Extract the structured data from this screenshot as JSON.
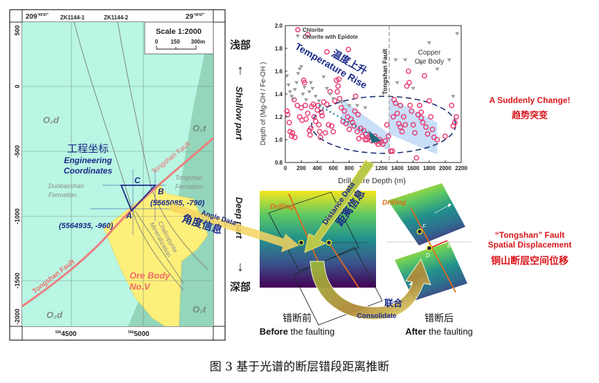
{
  "caption": "图 3  基于光谱的断层错段距离推断",
  "map": {
    "top_labels": {
      "left_coord": "209",
      "left_coord_sup": "°49'87\"",
      "right_coord": "29",
      "right_coord_sup": "°49'87\"",
      "drillholes": [
        "ZK1144-1",
        "ZK1144-2"
      ]
    },
    "y_ticks": [
      "500",
      "0",
      "-500",
      "-1000",
      "-1500",
      "-2000"
    ],
    "x_ticks": [
      {
        "prefix": "556",
        "value": "4500"
      },
      {
        "prefix": "556",
        "value": "5000"
      }
    ],
    "scale": {
      "title": "Scale 1:2000",
      "ticks": [
        "0",
        "150",
        "300m"
      ]
    },
    "formations": {
      "o2d_top": "O₂d",
      "o2d_bottom": "O₂d",
      "o2t_top": "O₂t",
      "o2t_bottom": "O₂t",
      "duobaoshan": [
        "Duobaoshan",
        "Formation"
      ],
      "tongshan": [
        "Tongshan",
        "Formation"
      ]
    },
    "fault_label_upper": "Tongshan Fault",
    "fault_label_lower": "Tongshan Fault",
    "engineering_cn": "工程坐标",
    "engineering_en": [
      "Engineering",
      "Coordinates"
    ],
    "points": {
      "A": "A",
      "B": "B",
      "C": "C",
      "A_coord": "(5564935, -960)",
      "B_coord": "(5565085, -790)"
    },
    "chalcopyrite": [
      "Chalcopyrite",
      "Mineralization"
    ],
    "ore_body": [
      "Ore Body",
      "No.V"
    ],
    "angle_data_en": "Angle Data",
    "angle_data_cn": "角度信息"
  },
  "depth_axis": {
    "shallow_cn": "浅部",
    "shallow_en": "Shallow part",
    "deep_en": "Deep part",
    "deep_cn": "深部",
    "up_arrow": "↑",
    "down_arrow": "↓"
  },
  "chart_data": {
    "type": "scatter",
    "title": "",
    "xlabel": "Drill Core Depth (m)",
    "ylabel": "Depth of (Mg-OH / Fe-OH )",
    "xlim": [
      0,
      2200
    ],
    "ylim": [
      0.8,
      2.0
    ],
    "x_ticks": [
      "0",
      "200",
      "400",
      "600",
      "800",
      "1000",
      "1200",
      "1400",
      "1600",
      "1800",
      "2000",
      "2200"
    ],
    "y_ticks": [
      "0.8",
      "1.0",
      "1.2",
      "1.4",
      "1.6",
      "1.8",
      "2.0"
    ],
    "legend": [
      "Chlorite",
      "Chlorite with Epidote"
    ],
    "legend_position": "top-left",
    "annotations": {
      "temperature_cn": "温度上升",
      "temperature_en": "Temperature Rise",
      "fault": "Tongshan Fault",
      "fault_x": 1300,
      "ore_body": [
        "Copper",
        "Ore Body"
      ]
    },
    "series": [
      {
        "name": "Chlorite",
        "color": "#e8336b",
        "points": [
          [
            20,
            1.25
          ],
          [
            30,
            1.22
          ],
          [
            50,
            1.15
          ],
          [
            60,
            1.07
          ],
          [
            80,
            1.03
          ],
          [
            90,
            1.06
          ],
          [
            110,
            1.35
          ],
          [
            120,
            1.02
          ],
          [
            150,
            1.3
          ],
          [
            180,
            1.2
          ],
          [
            200,
            1.28
          ],
          [
            210,
            1.17
          ],
          [
            230,
            1.52
          ],
          [
            240,
            1.5
          ],
          [
            250,
            1.3
          ],
          [
            260,
            1.18
          ],
          [
            280,
            1.23
          ],
          [
            300,
            1.08
          ],
          [
            310,
            1.04
          ],
          [
            320,
            1.1
          ],
          [
            330,
            1.29
          ],
          [
            350,
            1.31
          ],
          [
            360,
            1.2
          ],
          [
            380,
            1.16
          ],
          [
            400,
            1.26
          ],
          [
            410,
            1.3
          ],
          [
            420,
            1.13
          ],
          [
            430,
            1.07
          ],
          [
            440,
            1.02
          ],
          [
            450,
            1.24
          ],
          [
            460,
            1.21
          ],
          [
            480,
            1.33
          ],
          [
            500,
            1.06
          ],
          [
            520,
            1.31
          ],
          [
            540,
            1.13
          ],
          [
            560,
            1.42
          ],
          [
            580,
            1.12
          ],
          [
            600,
            1.07
          ],
          [
            620,
            1.34
          ],
          [
            640,
            1.52
          ],
          [
            650,
            1.42
          ],
          [
            660,
            1.47
          ],
          [
            670,
            1.53
          ],
          [
            680,
            1.36
          ],
          [
            700,
            1.28
          ],
          [
            720,
            1.16
          ],
          [
            740,
            1.25
          ],
          [
            760,
            1.14
          ],
          [
            780,
            1.2
          ],
          [
            790,
            1.79
          ],
          [
            800,
            1.09
          ],
          [
            820,
            1.18
          ],
          [
            840,
            1.15
          ],
          [
            860,
            1.12
          ],
          [
            870,
            1.25
          ],
          [
            880,
            1.38
          ],
          [
            900,
            1.07
          ],
          [
            910,
            1.22
          ],
          [
            920,
            1.01
          ],
          [
            940,
            1.1
          ],
          [
            960,
            1.03
          ],
          [
            980,
            1.08
          ],
          [
            1000,
            1.0
          ],
          [
            1010,
            1.05
          ],
          [
            1020,
            1.0
          ],
          [
            1040,
            1.02
          ],
          [
            1060,
            1.04
          ],
          [
            1080,
            0.99
          ],
          [
            1100,
            1.01
          ],
          [
            1120,
            1.03
          ],
          [
            1140,
            0.98
          ],
          [
            1160,
            0.96
          ],
          [
            1180,
            1.0
          ],
          [
            1200,
            0.98
          ],
          [
            1220,
            0.96
          ],
          [
            1250,
            0.99
          ],
          [
            1270,
            1.13
          ],
          [
            1290,
            1.03
          ],
          [
            1320,
            0.9
          ],
          [
            1340,
            0.9
          ],
          [
            1350,
            1.2
          ],
          [
            1360,
            1.35
          ],
          [
            1380,
            1.32
          ],
          [
            1400,
            1.23
          ],
          [
            1420,
            1.14
          ],
          [
            1440,
            1.11
          ],
          [
            1460,
            1.07
          ],
          [
            1480,
            1.2
          ],
          [
            1500,
            1.13
          ],
          [
            1520,
            1.47
          ],
          [
            1540,
            1.6
          ],
          [
            1550,
            1.5
          ],
          [
            1560,
            1.3
          ],
          [
            1580,
            1.25
          ],
          [
            1600,
            1.13
          ],
          [
            1620,
            1.06
          ],
          [
            1640,
            0.84
          ],
          [
            1660,
            1.22
          ],
          [
            1680,
            1.3
          ],
          [
            1700,
            1.19
          ],
          [
            1720,
            1.15
          ],
          [
            1740,
            1.56
          ],
          [
            1760,
            1.11
          ],
          [
            1780,
            1.05
          ],
          [
            1800,
            1.34
          ],
          [
            1820,
            1.2
          ],
          [
            1840,
            1.09
          ],
          [
            1860,
            1.02
          ],
          [
            1900,
            1.0
          ],
          [
            2000,
            1.03
          ],
          [
            2080,
            1.3
          ],
          [
            2100,
            1.12
          ],
          [
            2120,
            1.15
          ],
          [
            2140,
            1.2
          ],
          [
            280,
            1.92
          ],
          [
            520,
            1.77
          ],
          [
            1440,
            1.3
          ],
          [
            1700,
            1.24
          ]
        ]
      },
      {
        "name": "Chlorite with Epidote",
        "color": "#9a9a9a",
        "points": [
          [
            20,
            1.56
          ],
          [
            40,
            1.48
          ],
          [
            60,
            1.42
          ],
          [
            80,
            1.38
          ],
          [
            100,
            1.36
          ],
          [
            120,
            1.44
          ],
          [
            140,
            1.5
          ],
          [
            160,
            1.58
          ],
          [
            180,
            1.62
          ],
          [
            200,
            1.64
          ],
          [
            220,
            1.4
          ],
          [
            240,
            1.46
          ],
          [
            260,
            1.35
          ],
          [
            300,
            1.42
          ],
          [
            320,
            1.5
          ],
          [
            340,
            1.45
          ],
          [
            380,
            1.38
          ],
          [
            420,
            1.34
          ],
          [
            440,
            1.3
          ],
          [
            480,
            1.55
          ],
          [
            520,
            1.45
          ],
          [
            560,
            1.4
          ],
          [
            600,
            1.36
          ],
          [
            700,
            1.33
          ],
          [
            800,
            1.3
          ],
          [
            900,
            1.3
          ],
          [
            1000,
            1.28
          ],
          [
            1380,
            1.7
          ],
          [
            1500,
            1.7
          ],
          [
            1700,
            1.67
          ],
          [
            1800,
            1.85
          ],
          [
            1900,
            1.62
          ],
          [
            2050,
            1.7
          ],
          [
            2150,
            1.93
          ],
          [
            2100,
            1.38
          ],
          [
            1600,
            1.45
          ],
          [
            1400,
            1.5
          ]
        ]
      }
    ]
  },
  "right_notes": {
    "sudden_change_en": "A Suddenly Change!",
    "sudden_change_cn": "趋势突变",
    "fault_disp_en_1": "“Tongshan” Fault",
    "fault_disp_en_2": "Spatial Displacement",
    "fault_disp_cn": "铜山断层空间位移"
  },
  "before_panel": {
    "drilling": "Drilling",
    "distance_en": "Distance Data",
    "distance_cn": "距离信息",
    "label_cn": "错断前",
    "label_en_bold": "Before",
    "label_en_rest": " the faulting"
  },
  "after_panel": {
    "drilling": "Drilling",
    "points": [
      "F",
      "E",
      "D"
    ],
    "label_cn": "错断后",
    "label_en_bold": "After",
    "label_en_rest": " the faulting"
  },
  "consolidate": {
    "cn": "联合",
    "en": "Consolidate"
  },
  "colors": {
    "map_bg": "#b9f6e3",
    "map_dark": "#8fd4b8",
    "ore": "#fdf07a",
    "fault": "#f08080",
    "navy": "#1a2a8a",
    "red_text": "#d8161c",
    "orange": "#e06a1b"
  }
}
